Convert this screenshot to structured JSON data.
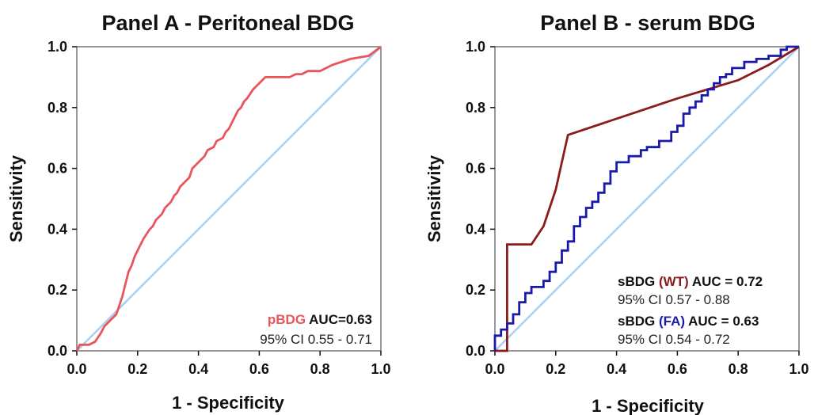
{
  "chart_data": [
    {
      "type": "line",
      "title": "Panel A - Peritoneal BDG",
      "xlabel": "1 - Specificity",
      "ylabel": "Sensitivity",
      "xlim": [
        0,
        1
      ],
      "ylim": [
        0,
        1
      ],
      "xticks": [
        "0.0",
        "0.2",
        "0.4",
        "0.6",
        "0.8",
        "1.0"
      ],
      "yticks": [
        "0.0",
        "0.2",
        "0.4",
        "0.6",
        "0.8",
        "1.0"
      ],
      "grid": false,
      "reference_line": {
        "x": [
          0,
          1
        ],
        "y": [
          0,
          1
        ],
        "color": "#a9cdf2"
      },
      "series": [
        {
          "name": "pBDG",
          "color": "#e8555a",
          "x": [
            0.0,
            0.01,
            0.04,
            0.06,
            0.08,
            0.09,
            0.11,
            0.13,
            0.14,
            0.15,
            0.16,
            0.17,
            0.18,
            0.19,
            0.2,
            0.21,
            0.22,
            0.24,
            0.25,
            0.26,
            0.28,
            0.29,
            0.31,
            0.32,
            0.33,
            0.34,
            0.35,
            0.37,
            0.38,
            0.39,
            0.4,
            0.41,
            0.42,
            0.43,
            0.45,
            0.46,
            0.48,
            0.49,
            0.5,
            0.51,
            0.52,
            0.53,
            0.54,
            0.55,
            0.56,
            0.58,
            0.6,
            0.62,
            0.64,
            0.66,
            0.68,
            0.7,
            0.72,
            0.74,
            0.76,
            0.8,
            0.84,
            0.9,
            0.96,
            1.0
          ],
          "y": [
            0.0,
            0.02,
            0.02,
            0.03,
            0.06,
            0.08,
            0.1,
            0.12,
            0.15,
            0.18,
            0.22,
            0.26,
            0.28,
            0.31,
            0.33,
            0.35,
            0.37,
            0.4,
            0.41,
            0.43,
            0.45,
            0.47,
            0.49,
            0.51,
            0.52,
            0.54,
            0.55,
            0.57,
            0.6,
            0.61,
            0.62,
            0.63,
            0.64,
            0.66,
            0.67,
            0.69,
            0.7,
            0.72,
            0.73,
            0.75,
            0.77,
            0.79,
            0.8,
            0.82,
            0.83,
            0.86,
            0.88,
            0.9,
            0.9,
            0.9,
            0.9,
            0.9,
            0.91,
            0.91,
            0.92,
            0.92,
            0.94,
            0.96,
            0.97,
            1.0
          ]
        }
      ],
      "annotation": {
        "series_label": "pBDG",
        "auc_text": " AUC=0.63",
        "ci_text": "95% CI 0.55 - 0.71"
      }
    },
    {
      "type": "line",
      "title": "Panel B - serum BDG",
      "xlabel": "1 - Specificity",
      "ylabel": "Sensitivity",
      "xlim": [
        0,
        1
      ],
      "ylim": [
        0,
        1
      ],
      "xticks": [
        "0.0",
        "0.2",
        "0.4",
        "0.6",
        "0.8",
        "1.0"
      ],
      "yticks": [
        "0.0",
        "0.2",
        "0.4",
        "0.6",
        "0.8",
        "1.0"
      ],
      "grid": false,
      "reference_line": {
        "x": [
          0,
          1
        ],
        "y": [
          0,
          1
        ],
        "color": "#a9cdf2"
      },
      "series": [
        {
          "name": "WT",
          "color": "#8b1a1a",
          "x": [
            0.0,
            0.04,
            0.04,
            0.04,
            0.12,
            0.16,
            0.2,
            0.24,
            0.6,
            0.7,
            0.8,
            0.9,
            1.0
          ],
          "y": [
            0.0,
            0.0,
            0.0,
            0.35,
            0.35,
            0.41,
            0.53,
            0.71,
            0.83,
            0.86,
            0.89,
            0.94,
            1.0
          ]
        },
        {
          "name": "FA",
          "color": "#1a1aaa",
          "x": [
            0.0,
            0.0,
            0.02,
            0.02,
            0.04,
            0.04,
            0.06,
            0.06,
            0.08,
            0.08,
            0.1,
            0.1,
            0.12,
            0.12,
            0.16,
            0.16,
            0.18,
            0.18,
            0.2,
            0.2,
            0.22,
            0.22,
            0.24,
            0.24,
            0.26,
            0.26,
            0.28,
            0.28,
            0.3,
            0.3,
            0.32,
            0.32,
            0.34,
            0.34,
            0.36,
            0.36,
            0.38,
            0.38,
            0.4,
            0.4,
            0.44,
            0.44,
            0.48,
            0.48,
            0.5,
            0.5,
            0.54,
            0.54,
            0.58,
            0.58,
            0.6,
            0.6,
            0.62,
            0.62,
            0.64,
            0.64,
            0.66,
            0.66,
            0.68,
            0.68,
            0.7,
            0.7,
            0.72,
            0.72,
            0.74,
            0.74,
            0.76,
            0.76,
            0.78,
            0.78,
            0.82,
            0.82,
            0.86,
            0.86,
            0.9,
            0.9,
            0.94,
            0.94,
            0.96,
            0.96,
            1.0
          ],
          "y": [
            0.0,
            0.05,
            0.05,
            0.07,
            0.07,
            0.09,
            0.09,
            0.12,
            0.12,
            0.16,
            0.16,
            0.19,
            0.19,
            0.21,
            0.21,
            0.23,
            0.23,
            0.26,
            0.26,
            0.29,
            0.29,
            0.33,
            0.33,
            0.36,
            0.36,
            0.41,
            0.41,
            0.44,
            0.44,
            0.47,
            0.47,
            0.49,
            0.49,
            0.52,
            0.52,
            0.55,
            0.55,
            0.59,
            0.59,
            0.62,
            0.62,
            0.64,
            0.64,
            0.66,
            0.66,
            0.67,
            0.67,
            0.69,
            0.69,
            0.72,
            0.72,
            0.74,
            0.74,
            0.78,
            0.78,
            0.8,
            0.8,
            0.82,
            0.82,
            0.84,
            0.84,
            0.86,
            0.86,
            0.88,
            0.88,
            0.9,
            0.9,
            0.91,
            0.91,
            0.93,
            0.93,
            0.95,
            0.95,
            0.96,
            0.96,
            0.97,
            0.97,
            0.99,
            0.99,
            1.0,
            1.0
          ]
        }
      ],
      "annotations": [
        {
          "prefix": "sBDG ",
          "series_label": "(WT)",
          "auc_text": " AUC = 0.72",
          "ci_text": "95% CI 0.57 - 0.88",
          "series": "WT"
        },
        {
          "prefix": "sBDG ",
          "series_label": "(FA)",
          "auc_text": "  AUC = 0.63",
          "ci_text": "95% CI 0.54 - 0.72",
          "series": "FA"
        }
      ]
    }
  ]
}
